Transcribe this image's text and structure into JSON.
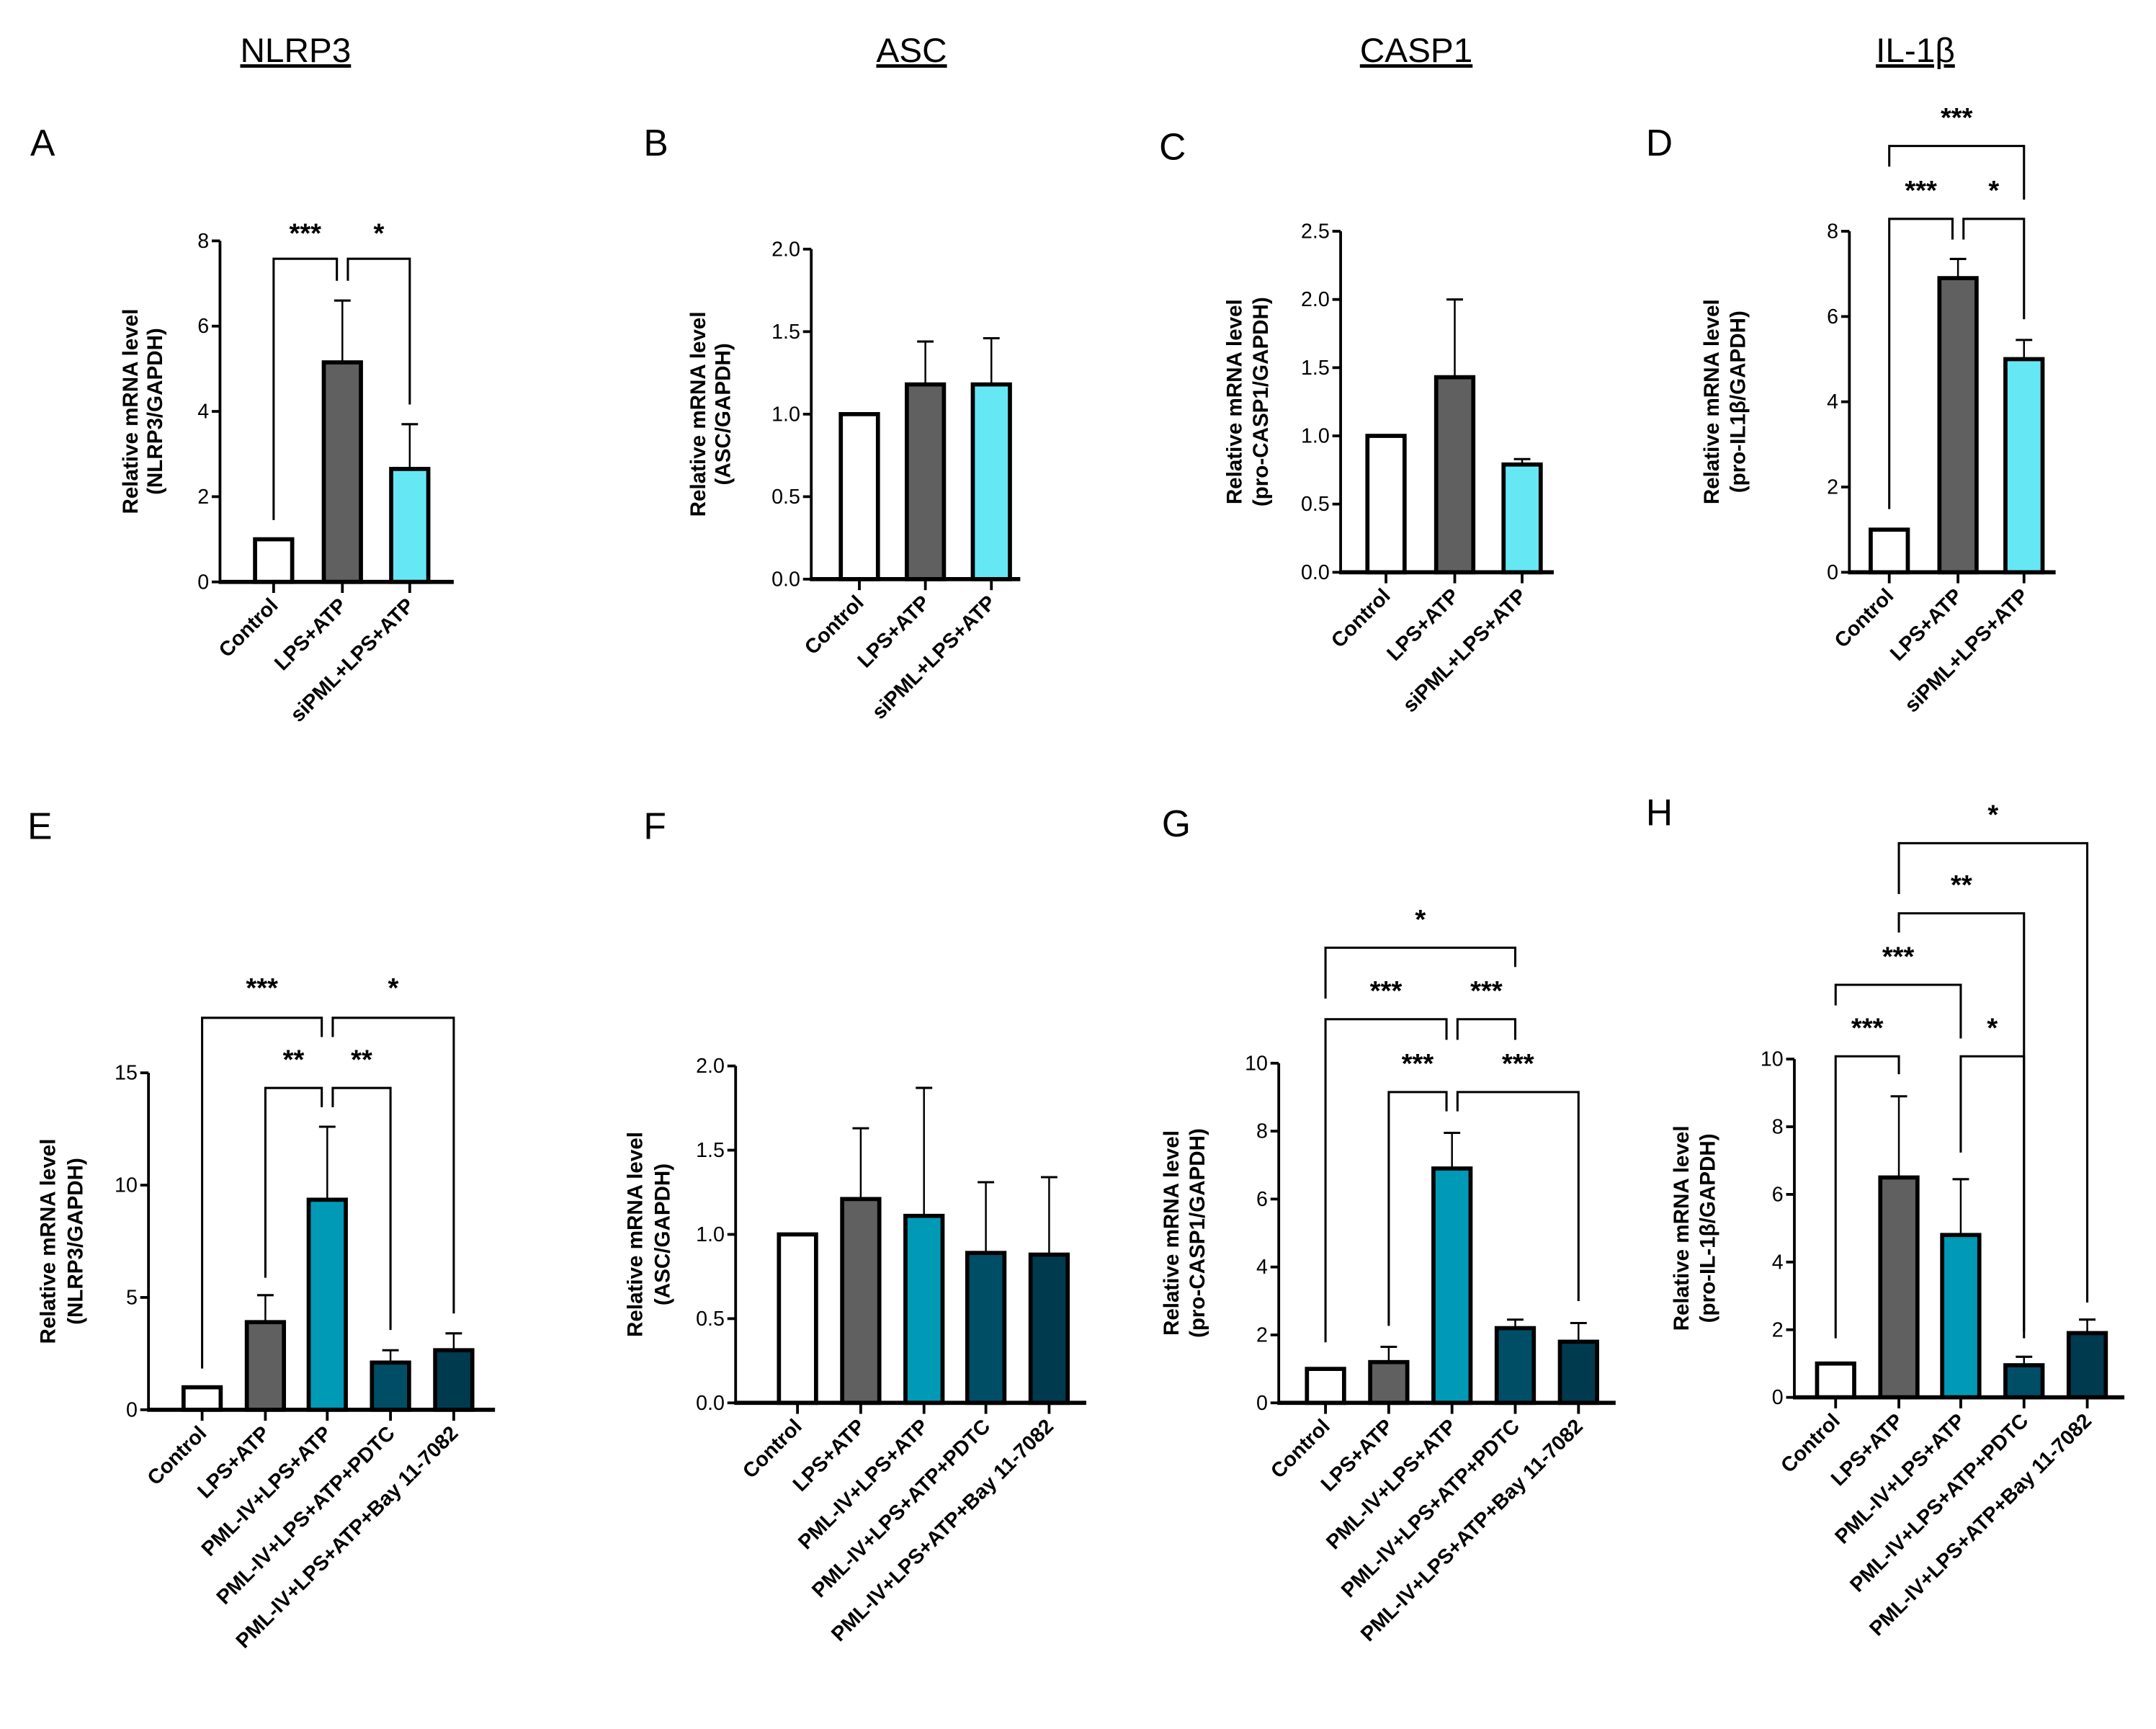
{
  "column_titles": [
    "NLRP3",
    "ASC",
    "CASP1",
    "IL-1β"
  ],
  "colors": {
    "control": "#ffffff",
    "lps_atp": "#606060",
    "sipml": "#66e8f4",
    "pml_iv": "#009ab6",
    "pdtc": "#004e66",
    "bay": "#003a4f"
  },
  "chart_data": [
    {
      "panel": "A",
      "type": "bar",
      "title": "NLRP3",
      "ylabel": [
        "Relative mRNA level",
        "(NLRP3/GAPDH)"
      ],
      "categories": [
        "Control",
        "LPS+ATP",
        "siPML+LPS+ATP"
      ],
      "values": [
        1.0,
        5.15,
        2.65
      ],
      "error_upper": [
        1.0,
        6.6,
        3.7
      ],
      "ylim": [
        0,
        8
      ],
      "yticks": [
        "0",
        "2",
        "4",
        "6",
        "8"
      ],
      "ytick_values": [
        0,
        2,
        4,
        6,
        8
      ],
      "colors": [
        "control",
        "lps_atp",
        "sipml"
      ],
      "comparisons": [
        {
          "a": 0,
          "b": 1,
          "label": "***"
        },
        {
          "a": 1,
          "b": 2,
          "label": "*"
        }
      ]
    },
    {
      "panel": "B",
      "type": "bar",
      "title": "ASC",
      "ylabel": [
        "Relative mRNA level",
        "(ASC/GAPDH)"
      ],
      "categories": [
        "Control",
        "LPS+ATP",
        "siPML+LPS+ATP"
      ],
      "values": [
        1.0,
        1.18,
        1.18
      ],
      "error_upper": [
        1.0,
        1.44,
        1.46
      ],
      "ylim": [
        0,
        2
      ],
      "yticks": [
        "0.0",
        "0.5",
        "1.0",
        "1.5",
        "2.0"
      ],
      "ytick_values": [
        0,
        0.5,
        1,
        1.5,
        2
      ],
      "colors": [
        "control",
        "lps_atp",
        "sipml"
      ],
      "comparisons": []
    },
    {
      "panel": "C",
      "type": "bar",
      "title": "CASP1",
      "ylabel": [
        "Relative mRNA level",
        "(pro-CASP1/GAPDH)"
      ],
      "categories": [
        "Control",
        "LPS+ATP",
        "siPML+LPS+ATP"
      ],
      "values": [
        1.0,
        1.43,
        0.79
      ],
      "error_upper": [
        1.0,
        2.0,
        0.83
      ],
      "ylim": [
        0,
        2.5
      ],
      "yticks": [
        "0.0",
        "0.5",
        "1.0",
        "1.5",
        "2.0",
        "2.5"
      ],
      "ytick_values": [
        0,
        0.5,
        1,
        1.5,
        2,
        2.5
      ],
      "colors": [
        "control",
        "lps_atp",
        "sipml"
      ],
      "comparisons": []
    },
    {
      "panel": "D",
      "type": "bar",
      "title": "IL-1β",
      "ylabel": [
        "Relative mRNA level",
        "(pro-IL1β/GAPDH)"
      ],
      "categories": [
        "Control",
        "LPS+ATP",
        "siPML+LPS+ATP"
      ],
      "values": [
        1.0,
        6.9,
        5.0
      ],
      "error_upper": [
        1.0,
        7.35,
        5.45
      ],
      "ylim": [
        0,
        8
      ],
      "yticks": [
        "0",
        "2",
        "4",
        "6",
        "8"
      ],
      "ytick_values": [
        0,
        2,
        4,
        6,
        8
      ],
      "colors": [
        "control",
        "lps_atp",
        "sipml"
      ],
      "comparisons": [
        {
          "a": 0,
          "b": 2,
          "label": "***"
        },
        {
          "a": 0,
          "b": 1,
          "label": "***"
        },
        {
          "a": 1,
          "b": 2,
          "label": "*"
        }
      ]
    },
    {
      "panel": "E",
      "type": "bar",
      "title": "NLRP3",
      "ylabel": [
        "Relative mRNA level",
        "(NLRP3/GAPDH)"
      ],
      "categories": [
        "Control",
        "LPS+ATP",
        "PML-IV+LPS+ATP",
        "PML-IV+LPS+ATP+PDTC",
        "PML-IV+LPS+ATP+Bay 11-7082"
      ],
      "values": [
        1.0,
        3.9,
        9.35,
        2.1,
        2.65
      ],
      "error_upper": [
        1.0,
        5.1,
        12.6,
        2.65,
        3.4
      ],
      "ylim": [
        0,
        15
      ],
      "yticks": [
        "0",
        "5",
        "10",
        "15"
      ],
      "ytick_values": [
        0,
        5,
        10,
        15
      ],
      "colors": [
        "control",
        "lps_atp",
        "pml_iv",
        "pdtc",
        "bay"
      ],
      "comparisons": [
        {
          "a": 0,
          "b": 2,
          "label": "***"
        },
        {
          "a": 2,
          "b": 4,
          "label": "*"
        },
        {
          "a": 1,
          "b": 2,
          "label": "**"
        },
        {
          "a": 2,
          "b": 3,
          "label": "**"
        }
      ]
    },
    {
      "panel": "F",
      "type": "bar",
      "title": "ASC",
      "ylabel": [
        "Relative mRNA level",
        "(ASC/GAPDH)"
      ],
      "categories": [
        "Control",
        "LPS+ATP",
        "PML-IV+LPS+ATP",
        "PML-IV+LPS+ATP+PDTC",
        "PML-IV+LPS+ATP+Bay 11-7082"
      ],
      "values": [
        1.0,
        1.21,
        1.11,
        0.89,
        0.88
      ],
      "error_upper": [
        1.0,
        1.63,
        1.87,
        1.31,
        1.34
      ],
      "ylim": [
        0,
        2
      ],
      "yticks": [
        "0.0",
        "0.5",
        "1.0",
        "1.5",
        "2.0"
      ],
      "ytick_values": [
        0,
        0.5,
        1,
        1.5,
        2
      ],
      "colors": [
        "control",
        "lps_atp",
        "pml_iv",
        "pdtc",
        "bay"
      ],
      "comparisons": []
    },
    {
      "panel": "G",
      "type": "bar",
      "title": "CASP1",
      "ylabel": [
        "Relative mRNA level",
        "(pro-CASP1/GAPDH)"
      ],
      "categories": [
        "Control",
        "LPS+ATP",
        "PML-IV+LPS+ATP",
        "PML-IV+LPS+ATP+PDTC",
        "PML-IV+LPS+ATP+Bay 11-7082"
      ],
      "values": [
        1.0,
        1.2,
        6.9,
        2.2,
        1.8
      ],
      "error_upper": [
        1.0,
        1.65,
        7.95,
        2.45,
        2.35
      ],
      "ylim": [
        0,
        10
      ],
      "yticks": [
        "0",
        "2",
        "4",
        "6",
        "8",
        "10"
      ],
      "ytick_values": [
        0,
        2,
        4,
        6,
        8,
        10
      ],
      "colors": [
        "control",
        "lps_atp",
        "pml_iv",
        "pdtc",
        "bay"
      ],
      "comparisons": [
        {
          "a": 0,
          "b": 3,
          "label": "*"
        },
        {
          "a": 0,
          "b": 2,
          "label": "***"
        },
        {
          "a": 2,
          "b": 3,
          "label": "***"
        },
        {
          "a": 1,
          "b": 2,
          "label": "***"
        },
        {
          "a": 2,
          "b": 4,
          "label": "***"
        }
      ]
    },
    {
      "panel": "H",
      "type": "bar",
      "title": "IL-1β",
      "ylabel": [
        "Relative mRNA level",
        "(pro-IL-1β/GAPDH)"
      ],
      "categories": [
        "Control",
        "LPS+ATP",
        "PML-IV+LPS+ATP",
        "PML-IV+LPS+ATP+PDTC",
        "PML-IV+LPS+ATP+Bay 11-7082"
      ],
      "values": [
        1.0,
        6.5,
        4.8,
        0.95,
        1.9
      ],
      "error_upper": [
        1.0,
        8.9,
        6.45,
        1.2,
        2.3
      ],
      "ylim": [
        0,
        10
      ],
      "yticks": [
        "0",
        "2",
        "4",
        "6",
        "8",
        "10"
      ],
      "ytick_values": [
        0,
        2,
        4,
        6,
        8,
        10
      ],
      "colors": [
        "control",
        "lps_atp",
        "pml_iv",
        "pdtc",
        "bay"
      ],
      "comparisons": [
        {
          "a": 1,
          "b": 4,
          "label": "*"
        },
        {
          "a": 1,
          "b": 3,
          "label": "**"
        },
        {
          "a": 0,
          "b": 2,
          "label": "***"
        },
        {
          "a": 0,
          "b": 1,
          "label": "***"
        },
        {
          "a": 2,
          "b": 3,
          "label": "*"
        }
      ]
    }
  ]
}
